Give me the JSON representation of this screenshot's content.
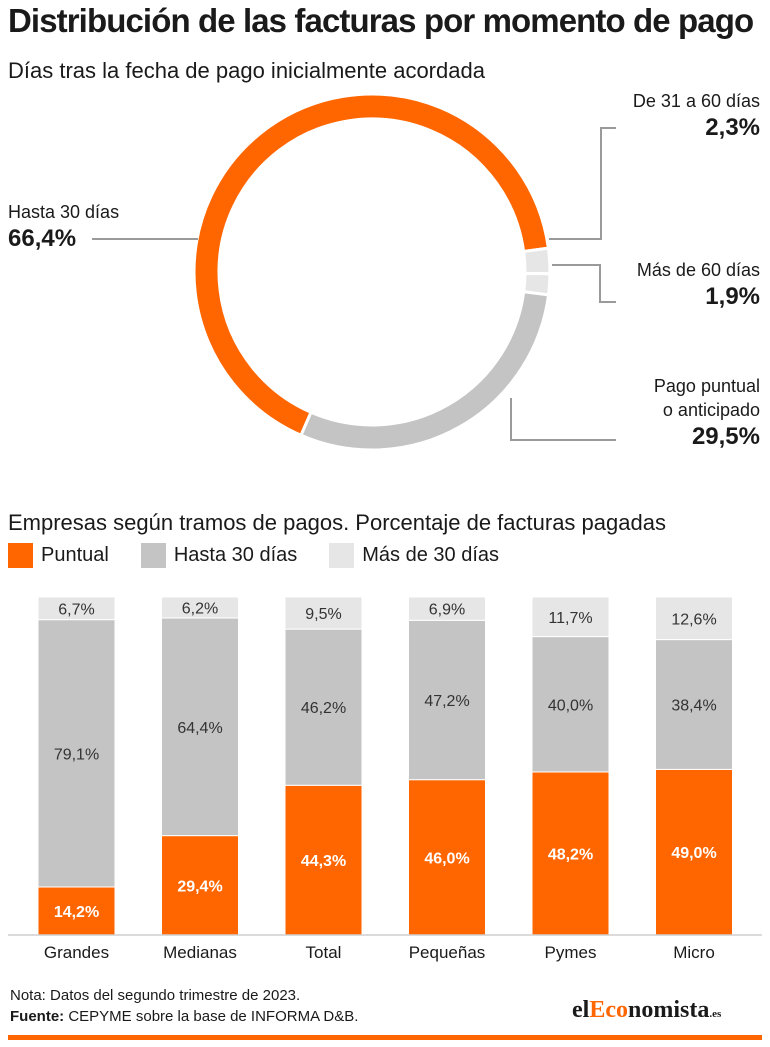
{
  "header": {
    "title": "Distribución de las facturas por momento de pago",
    "subtitle": "Días tras la fecha de pago inicialmente acordada"
  },
  "colors": {
    "orange": "#ff6600",
    "gray": "#c4c4c4",
    "light_gray": "#e6e6e6",
    "text": "#1a1a1a",
    "leader": "#9a9a9a"
  },
  "donut": {
    "callouts": [
      {
        "label": "Hasta 30 días",
        "value": "66,4%"
      },
      {
        "label": "De 31 a 60 días",
        "value": "2,3%"
      },
      {
        "label": "Más de 60 días",
        "value": "1,9%"
      },
      {
        "label_line1": "Pago puntual",
        "label_line2": "o anticipado",
        "value": "29,5%"
      }
    ]
  },
  "bars_section": {
    "title": "Empresas según tramos de pagos. Porcentaje de facturas pagadas",
    "legend": [
      "Puntual",
      "Hasta 30 días",
      "Más de 30 días"
    ]
  },
  "chart_data": [
    {
      "type": "pie",
      "title": "Distribución de las facturas por momento de pago",
      "subtitle": "Días tras la fecha de pago inicialmente acordada",
      "categories": [
        "Hasta 30 días",
        "De 31 a 60 días",
        "Más de 60 días",
        "Pago puntual o anticipado"
      ],
      "values": [
        66.4,
        2.3,
        1.9,
        29.5
      ],
      "labels": [
        "66,4%",
        "2,3%",
        "1,9%",
        "29,5%"
      ],
      "colors": [
        "#ff6600",
        "#e6e6e6",
        "#e6e6e6",
        "#c4c4c4"
      ],
      "donut": true
    },
    {
      "type": "bar",
      "stacked": true,
      "title": "Empresas según tramos de pagos. Porcentaje de facturas pagadas",
      "categories": [
        "Grandes",
        "Medianas",
        "Total",
        "Pequeñas",
        "Pymes",
        "Micro"
      ],
      "series": [
        {
          "name": "Puntual",
          "color": "#ff6600",
          "values": [
            14.2,
            29.4,
            44.3,
            46.0,
            48.2,
            49.0
          ],
          "labels": [
            "14,2%",
            "29,4%",
            "44,3%",
            "46,0%",
            "48,2%",
            "49,0%"
          ]
        },
        {
          "name": "Hasta 30 días",
          "color": "#c4c4c4",
          "values": [
            79.1,
            64.4,
            46.2,
            47.2,
            40.0,
            38.4
          ],
          "labels": [
            "79,1%",
            "64,4%",
            "46,2%",
            "47,2%",
            "40,0%",
            "38,4%"
          ]
        },
        {
          "name": "Más de 30 días",
          "color": "#e6e6e6",
          "values": [
            6.7,
            6.2,
            9.5,
            6.9,
            11.7,
            12.6
          ],
          "labels": [
            "6,7%",
            "6,2%",
            "9,5%",
            "6,9%",
            "11,7%",
            "12,6%"
          ]
        }
      ],
      "ylim": [
        0,
        100
      ],
      "legend_position": "top-left",
      "grid": false
    }
  ],
  "footer": {
    "note": "Nota: Datos del segundo trimestre de 2023.",
    "source_label": "Fuente:",
    "source_text": " CEPYME sobre la base de INFORMA D&B.",
    "logo_part1": "el",
    "logo_part2": "Eco",
    "logo_part3": "nomista",
    "logo_part4": ".es"
  }
}
